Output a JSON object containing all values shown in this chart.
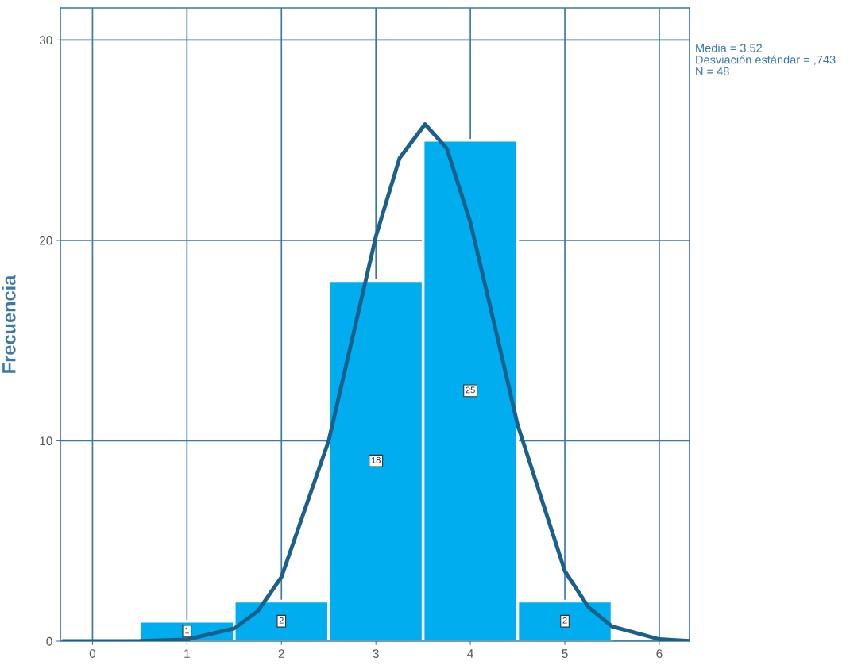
{
  "chart_data": {
    "type": "histogram",
    "ylabel": "Frecuencia",
    "annotations": [
      "Media = 3,52",
      "Desviación estándar = ,743",
      "N = 48"
    ],
    "series": [
      {
        "bins": [
          0.5,
          1.5,
          2.5,
          3.5,
          4.5,
          5.5
        ],
        "values": [
          1,
          2,
          18,
          25,
          2
        ],
        "value_labels": [
          "1",
          "2",
          "18",
          "25",
          "2"
        ],
        "color": "#00aeef"
      },
      {
        "type": "line",
        "color": "#1b5f8c",
        "x": [
          -0.3,
          0,
          0.5,
          1,
          1.5,
          1.75,
          2,
          2.5,
          2.75,
          3,
          3.25,
          3.52,
          3.75,
          4,
          4.25,
          4.5,
          5,
          5.25,
          5.5,
          6,
          6.3
        ],
        "values": [
          0,
          0,
          0.01,
          0.08,
          0.64,
          1.5,
          3.2,
          10.0,
          15.1,
          20.2,
          24.1,
          25.8,
          24.6,
          20.9,
          15.9,
          10.8,
          3.5,
          1.7,
          0.74,
          0.1,
          0.02
        ]
      }
    ],
    "xlim": [
      -0.34,
      6.32
    ],
    "ylim": [
      0,
      31.6
    ],
    "xticks": [
      0,
      1,
      2,
      3,
      4,
      5,
      6
    ],
    "yticks": [
      0,
      10,
      20,
      30
    ],
    "grid": true,
    "line_style": "solid",
    "marker": "none",
    "legend": false
  }
}
